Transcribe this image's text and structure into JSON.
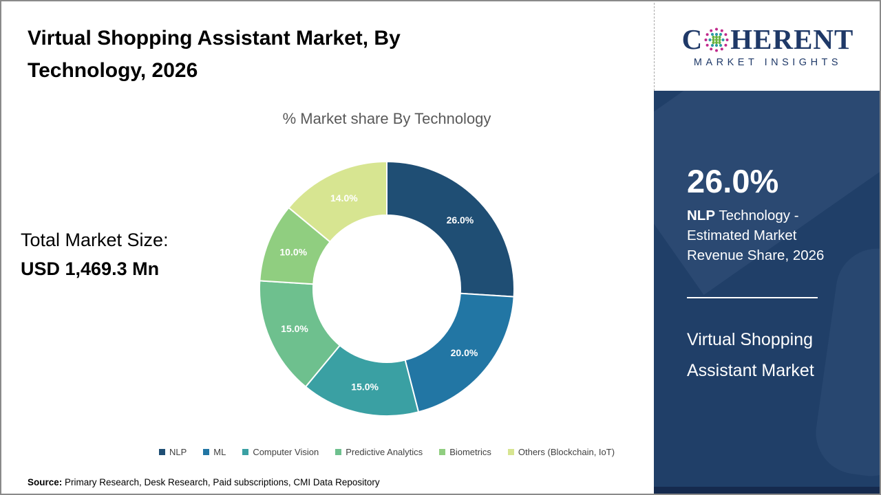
{
  "page": {
    "title": "Virtual Shopping Assistant Market, By Technology, 2026",
    "source_label": "Source:",
    "source_text": " Primary Research, Desk Research, Paid subscriptions, CMI Data Repository"
  },
  "logo": {
    "brand_part1": "C",
    "brand_part2": "HERENT",
    "subtitle": "MARKET INSIGHTS",
    "brand_color": "#1f3968",
    "globe_icon": "coherent-dotted-globe"
  },
  "total_market": {
    "label": "Total Market Size:",
    "value": "USD 1,469.3 Mn"
  },
  "sidebar": {
    "stat_value": "26.0%",
    "stat_label_bold": "NLP",
    "stat_label_rest": " Technology - Estimated Market Revenue Share, 2026",
    "market_name": "Virtual Shopping Assistant Market",
    "background_color": "#203f68",
    "footer_color": "#152a4e"
  },
  "chart_data": {
    "type": "pie",
    "subtype": "donut",
    "title": "% Market share By Technology",
    "categories": [
      "NLP",
      "ML",
      "Computer Vision",
      "Predictive Analytics",
      "Biometrics",
      "Others (Blockchain, IoT)"
    ],
    "values": [
      26.0,
      20.0,
      15.0,
      15.0,
      10.0,
      14.0
    ],
    "labels": [
      "26.0%",
      "20.0%",
      "15.0%",
      "15.0%",
      "10.0%",
      "14.0%"
    ],
    "colors": [
      "#1f4e74",
      "#2276a4",
      "#3aa0a3",
      "#6ec08e",
      "#90ce80",
      "#d7e591"
    ],
    "start_angle_deg": 0,
    "clockwise": true,
    "inner_radius_ratio": 0.58,
    "legend_position": "bottom",
    "data_label_color": "#ffffff"
  }
}
